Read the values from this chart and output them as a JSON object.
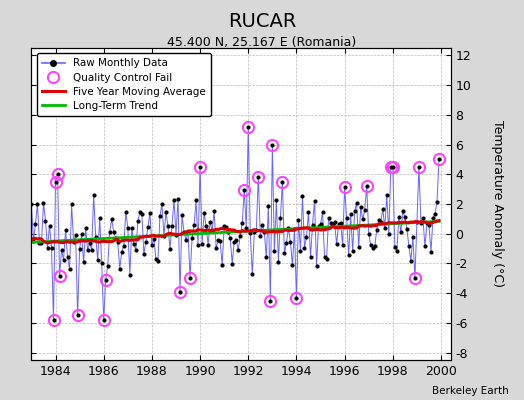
{
  "title": "RUCAR",
  "subtitle": "45.400 N, 25.167 E (Romania)",
  "ylabel": "Temperature Anomaly (°C)",
  "watermark": "Berkeley Earth",
  "xlim": [
    1983.0,
    2000.4
  ],
  "ylim": [
    -8.5,
    12.5
  ],
  "yticks": [
    -8,
    -6,
    -4,
    -2,
    0,
    2,
    4,
    6,
    8,
    10,
    12
  ],
  "xticks": [
    1984,
    1986,
    1988,
    1990,
    1992,
    1994,
    1996,
    1998,
    2000
  ],
  "fig_bg_color": "#d8d8d8",
  "plot_bg_color": "#ffffff",
  "line_color": "#6666ff",
  "ma_color": "#dd0000",
  "trend_color": "#00bb00",
  "qc_color": "#ff44ff",
  "dot_color": "#000000"
}
